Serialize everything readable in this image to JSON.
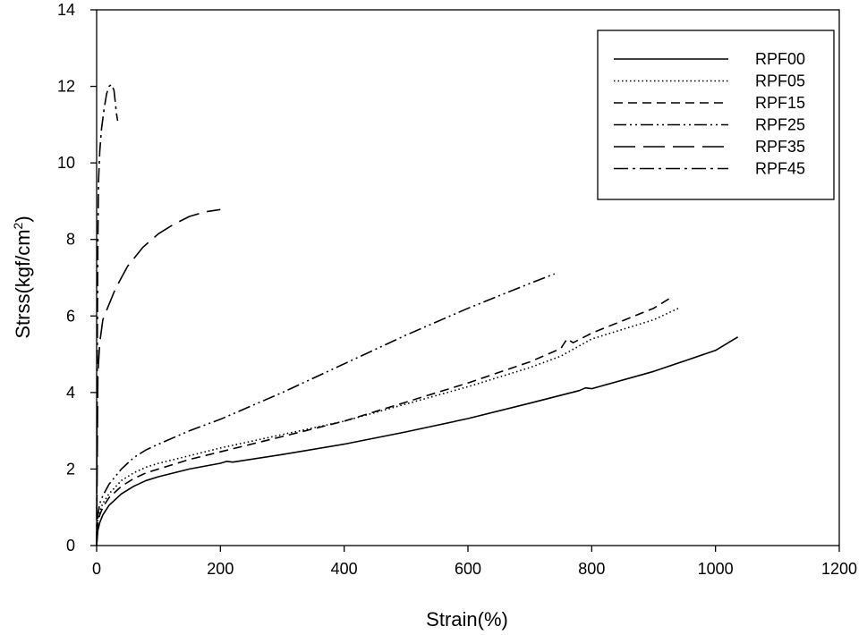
{
  "chart_data": {
    "type": "line",
    "title": "",
    "xlabel": "Strain(%)",
    "ylabel_main": "Strss(kgf/cm",
    "ylabel_sup": "2",
    "ylabel_close": ")",
    "xlim": [
      0,
      1200
    ],
    "ylim": [
      0,
      14
    ],
    "xticks": [
      0,
      200,
      400,
      600,
      800,
      1000,
      1200
    ],
    "yticks": [
      0,
      2,
      4,
      6,
      8,
      10,
      12,
      14
    ],
    "grid": false,
    "legend_position": "top-right",
    "series": [
      {
        "name": "RPF00",
        "dash": "solid",
        "x": [
          0,
          2,
          5,
          10,
          20,
          40,
          60,
          80,
          100,
          150,
          200,
          210,
          220,
          300,
          400,
          500,
          600,
          700,
          780,
          790,
          800,
          900,
          1000,
          1036
        ],
        "y": [
          0,
          0.4,
          0.6,
          0.8,
          1.05,
          1.35,
          1.55,
          1.7,
          1.8,
          2.0,
          2.15,
          2.2,
          2.18,
          2.38,
          2.65,
          2.97,
          3.32,
          3.72,
          4.05,
          4.12,
          4.1,
          4.55,
          5.1,
          5.45
        ]
      },
      {
        "name": "RPF05",
        "dash": "dotted",
        "x": [
          0,
          2,
          5,
          10,
          20,
          40,
          60,
          80,
          100,
          150,
          200,
          300,
          400,
          500,
          600,
          700,
          750,
          800,
          900,
          940
        ],
        "y": [
          0,
          0.7,
          0.9,
          1.1,
          1.35,
          1.7,
          1.9,
          2.05,
          2.15,
          2.35,
          2.55,
          2.9,
          3.25,
          3.7,
          4.15,
          4.65,
          4.95,
          5.4,
          5.9,
          6.2
        ]
      },
      {
        "name": "RPF15",
        "dash": "short-dash",
        "x": [
          0,
          2,
          5,
          10,
          20,
          40,
          60,
          80,
          100,
          150,
          200,
          300,
          400,
          500,
          600,
          700,
          750,
          760,
          770,
          800,
          900,
          925
        ],
        "y": [
          0,
          0.6,
          0.8,
          1.0,
          1.25,
          1.55,
          1.75,
          1.9,
          2.0,
          2.25,
          2.45,
          2.85,
          3.25,
          3.75,
          4.25,
          4.8,
          5.15,
          5.4,
          5.3,
          5.55,
          6.2,
          6.45
        ]
      },
      {
        "name": "RPF25",
        "dash": "dash-dot-dot",
        "x": [
          0,
          2,
          5,
          10,
          20,
          40,
          60,
          80,
          100,
          150,
          200,
          300,
          400,
          500,
          600,
          700,
          740
        ],
        "y": [
          0,
          0.8,
          1.1,
          1.3,
          1.6,
          2.0,
          2.3,
          2.5,
          2.65,
          3.0,
          3.3,
          4.0,
          4.75,
          5.5,
          6.2,
          6.85,
          7.1
        ]
      },
      {
        "name": "RPF35",
        "dash": "long-dash",
        "x": [
          0,
          2,
          5,
          10,
          20,
          30,
          50,
          75,
          100,
          125,
          150,
          175,
          200
        ],
        "y": [
          0,
          4.5,
          5.3,
          5.9,
          6.3,
          6.7,
          7.3,
          7.8,
          8.15,
          8.4,
          8.6,
          8.72,
          8.78
        ]
      },
      {
        "name": "RPF45",
        "dash": "dash-dot",
        "x": [
          0,
          1,
          2,
          3,
          5,
          8,
          12,
          16,
          20,
          24,
          28,
          30,
          32,
          34
        ],
        "y": [
          0,
          5.0,
          8.0,
          9.5,
          10.3,
          10.9,
          11.4,
          11.8,
          12.0,
          12.05,
          11.9,
          11.6,
          11.3,
          11.1
        ]
      }
    ]
  }
}
